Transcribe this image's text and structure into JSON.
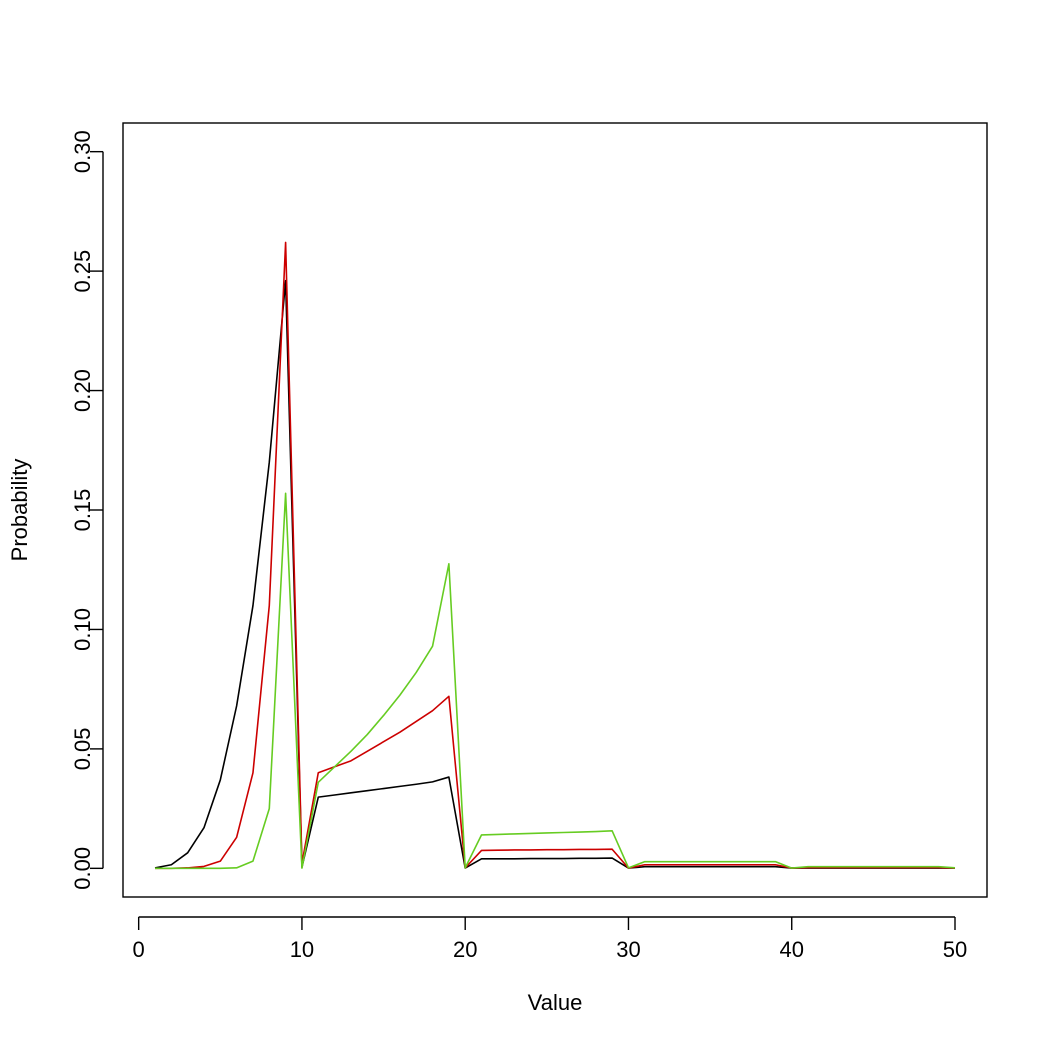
{
  "chart_data": {
    "type": "line",
    "title": "",
    "xlabel": "Value",
    "ylabel": "Probability",
    "xlim": [
      1,
      50
    ],
    "ylim": [
      0,
      0.3
    ],
    "x_ticks": [
      0,
      10,
      20,
      30,
      40,
      50
    ],
    "y_ticks": [
      0.0,
      0.05,
      0.1,
      0.15,
      0.2,
      0.25,
      0.3
    ],
    "y_tick_labels": [
      "0.00",
      "0.05",
      "0.10",
      "0.15",
      "0.20",
      "0.25",
      "0.30"
    ],
    "grid": false,
    "x": [
      1,
      2,
      3,
      4,
      5,
      6,
      7,
      8,
      9,
      10,
      11,
      12,
      13,
      14,
      15,
      16,
      17,
      18,
      19,
      20,
      21,
      22,
      23,
      24,
      25,
      26,
      27,
      28,
      29,
      30,
      31,
      32,
      33,
      34,
      35,
      36,
      37,
      38,
      39,
      40,
      41,
      42,
      43,
      44,
      45,
      46,
      47,
      48,
      49,
      50
    ],
    "series": [
      {
        "color": "#000000",
        "values": [
          0.0002,
          0.0015,
          0.0065,
          0.017,
          0.037,
          0.068,
          0.11,
          0.17,
          0.246,
          0.0005,
          0.0298,
          0.0307,
          0.0316,
          0.0325,
          0.0334,
          0.0343,
          0.0352,
          0.0362,
          0.0382,
          0.0001,
          0.004,
          0.004,
          0.004,
          0.0041,
          0.0041,
          0.0041,
          0.0042,
          0.0042,
          0.0043,
          0.0001,
          0.0007,
          0.0007,
          0.0007,
          0.0007,
          0.0007,
          0.0007,
          0.0007,
          0.0007,
          0.0007,
          0.0001,
          0.0001,
          0.0001,
          0.0001,
          0.0001,
          0.0001,
          0.0001,
          0.0001,
          0.0001,
          0.0001,
          0.0001
        ]
      },
      {
        "color": "#cc0000",
        "values": [
          0.0,
          0.0,
          0.0002,
          0.0008,
          0.003,
          0.013,
          0.04,
          0.11,
          0.262,
          0.002,
          0.04,
          0.0425,
          0.045,
          0.049,
          0.053,
          0.057,
          0.0615,
          0.066,
          0.072,
          0.0002,
          0.0075,
          0.0076,
          0.0077,
          0.0077,
          0.0078,
          0.0078,
          0.0079,
          0.0079,
          0.008,
          0.0001,
          0.0015,
          0.0015,
          0.0015,
          0.0015,
          0.0015,
          0.0015,
          0.0015,
          0.0015,
          0.0015,
          0.0001,
          0.0003,
          0.0003,
          0.0003,
          0.0003,
          0.0003,
          0.0003,
          0.0003,
          0.0003,
          0.0003,
          0.0001
        ]
      },
      {
        "color": "#66cc22",
        "values": [
          0.0,
          0.0,
          0.0,
          0.0,
          0.0,
          0.0002,
          0.003,
          0.025,
          0.157,
          0.0001,
          0.036,
          0.0425,
          0.049,
          0.056,
          0.064,
          0.0725,
          0.082,
          0.093,
          0.1275,
          0.0002,
          0.014,
          0.0142,
          0.0144,
          0.0146,
          0.0148,
          0.015,
          0.0152,
          0.0154,
          0.0157,
          0.0002,
          0.0028,
          0.0028,
          0.0028,
          0.0028,
          0.0028,
          0.0028,
          0.0028,
          0.0028,
          0.0028,
          0.0001,
          0.0007,
          0.0007,
          0.0007,
          0.0007,
          0.0007,
          0.0007,
          0.0007,
          0.0007,
          0.0007,
          0.0002
        ]
      }
    ]
  }
}
